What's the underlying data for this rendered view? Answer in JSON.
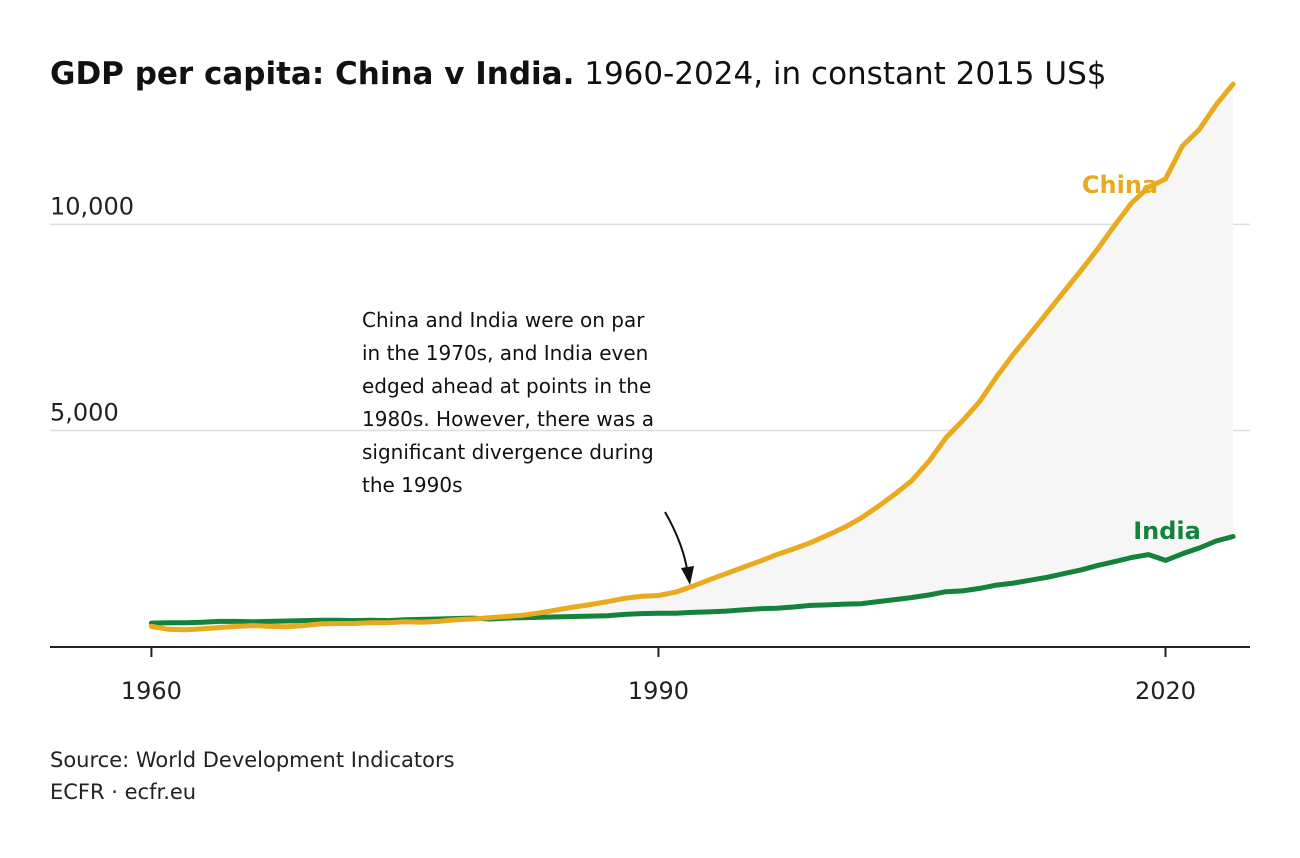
{
  "title": {
    "bold": "GDP per capita: China v India.",
    "rest": " 1960-2024, in constant 2015 US$"
  },
  "footer": {
    "source": "Source: World Development Indicators",
    "credit": "ECFR · ecfr.eu"
  },
  "annotation": {
    "lines": [
      "China and India were on par",
      "in the 1970s, and India even",
      "edged ahead at points in the",
      "1980s. However, there was a",
      "significant divergence during",
      "the 1990s"
    ]
  },
  "colors": {
    "china": "#E8AA1F",
    "india": "#14823A",
    "gap_fill": "#F6F6F6",
    "grid": "#DDDDDD",
    "axis": "#222222"
  },
  "chart_data": {
    "type": "line",
    "title": "GDP per capita: China v India.",
    "subtitle": "1960-2024, in constant 2015 US$",
    "xlabel": "",
    "ylabel": "",
    "xlim": [
      1954,
      2025
    ],
    "ylim": [
      -250,
      13500
    ],
    "x_ticks": [
      1960,
      1990,
      2020
    ],
    "x_tick_labels": [
      "1960",
      "1990",
      "2020"
    ],
    "y_ticks": [
      5000,
      10000
    ],
    "y_tick_labels": [
      "5,000",
      "10,000"
    ],
    "grid": "horizontal",
    "shaded_gap": true,
    "x": [
      1960,
      1961,
      1962,
      1963,
      1964,
      1965,
      1966,
      1967,
      1968,
      1969,
      1970,
      1971,
      1972,
      1973,
      1974,
      1975,
      1976,
      1977,
      1978,
      1979,
      1980,
      1981,
      1982,
      1983,
      1984,
      1985,
      1986,
      1987,
      1988,
      1989,
      1990,
      1991,
      1992,
      1993,
      1994,
      1995,
      1996,
      1997,
      1998,
      1999,
      2000,
      2001,
      2002,
      2003,
      2004,
      2005,
      2006,
      2007,
      2008,
      2009,
      2010,
      2011,
      2012,
      2013,
      2014,
      2015,
      2016,
      2017,
      2018,
      2019,
      2020,
      2021,
      2022,
      2023,
      2024
    ],
    "series": [
      {
        "name": "China",
        "label": "China",
        "values": [
          250,
          180,
          170,
          190,
          220,
          250,
          270,
          250,
          240,
          270,
          310,
          320,
          320,
          340,
          340,
          360,
          350,
          370,
          410,
          430,
          460,
          490,
          520,
          580,
          650,
          720,
          780,
          850,
          930,
          980,
          1000,
          1080,
          1220,
          1380,
          1530,
          1680,
          1830,
          1990,
          2130,
          2280,
          2460,
          2650,
          2880,
          3160,
          3460,
          3790,
          4250,
          4820,
          5240,
          5700,
          6300,
          6850,
          7350,
          7860,
          8370,
          8880,
          9410,
          9980,
          10520,
          10900,
          11100,
          11900,
          12300,
          12900,
          13400
        ]
      },
      {
        "name": "India",
        "label": "India",
        "values": [
          330,
          340,
          340,
          350,
          370,
          370,
          360,
          370,
          380,
          390,
          400,
          400,
          390,
          400,
          390,
          410,
          420,
          430,
          440,
          450,
          430,
          450,
          460,
          470,
          480,
          490,
          500,
          510,
          540,
          560,
          570,
          570,
          590,
          600,
          620,
          650,
          680,
          690,
          720,
          760,
          770,
          790,
          800,
          850,
          900,
          950,
          1010,
          1090,
          1110,
          1170,
          1250,
          1300,
          1370,
          1440,
          1530,
          1620,
          1730,
          1820,
          1920,
          1990,
          1850,
          2010,
          2150,
          2320,
          2430
        ]
      }
    ]
  }
}
